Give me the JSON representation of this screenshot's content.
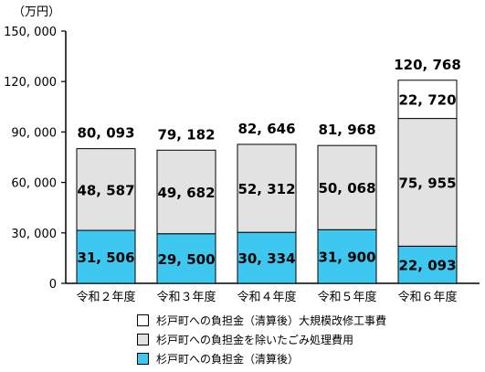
{
  "unit_label": "（万円）",
  "chart_data": {
    "type": "bar",
    "stacked": true,
    "categories": [
      "令和２年度",
      "令和３年度",
      "令和４年度",
      "令和５年度",
      "令和６年度"
    ],
    "ylim": [
      0,
      150000
    ],
    "yticks": [
      0,
      30000,
      60000,
      90000,
      120000,
      150000
    ],
    "ytick_labels": [
      "0",
      "30, 000",
      "60, 000",
      "90, 000",
      "120, 000",
      "150, 000"
    ],
    "series": [
      {
        "name": "杉戸町への負担金（清算後）",
        "color": "#3ec8f0",
        "values": [
          31506,
          29500,
          30334,
          31900,
          22093
        ],
        "labels": [
          "31, 506",
          "29, 500",
          "30, 334",
          "31, 900",
          "22, 093"
        ]
      },
      {
        "name": "杉戸町への負担金を除いたごみ処理費用",
        "color": "#e2e2e2",
        "values": [
          48587,
          49682,
          52312,
          50068,
          75955
        ],
        "labels": [
          "48, 587",
          "49, 682",
          "52, 312",
          "50, 068",
          "75, 955"
        ]
      },
      {
        "name": "杉戸町への負担金（清算後）大規模改修工事費",
        "color": "#ffffff",
        "values": [
          0,
          0,
          0,
          0,
          22720
        ],
        "labels": [
          "",
          "",
          "",
          "",
          "22, 720"
        ]
      }
    ],
    "totals": [
      80093,
      79182,
      82646,
      81968,
      120768
    ],
    "total_labels": [
      "80, 093",
      "79, 182",
      "82, 646",
      "81, 968",
      "120, 768"
    ],
    "grid": false,
    "legend_position": "bottom"
  },
  "legend": [
    {
      "label": "杉戸町への負担金（清算後）大規模改修工事費",
      "color": "#ffffff"
    },
    {
      "label": "杉戸町への負担金を除いたごみ処理費用",
      "color": "#e2e2e2"
    },
    {
      "label": "杉戸町への負担金（清算後）",
      "color": "#3ec8f0"
    }
  ]
}
